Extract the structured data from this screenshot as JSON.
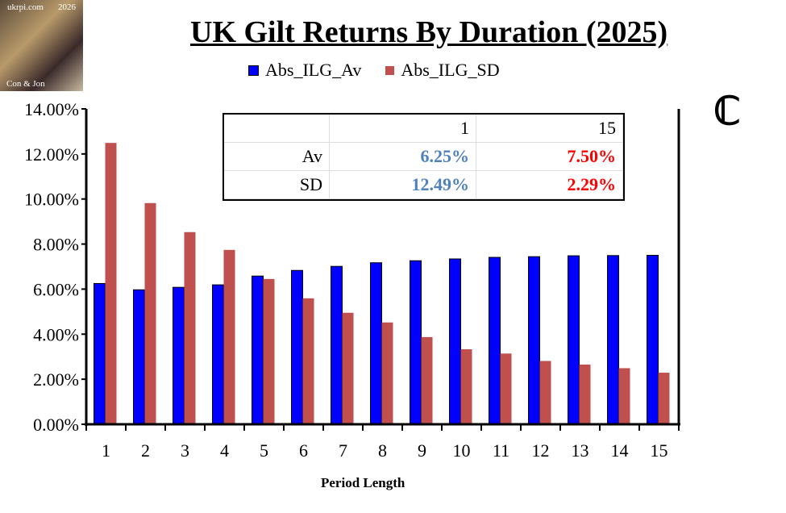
{
  "title": "UK Gilt Returns By Duration (2025)",
  "logo": {
    "top_left": "ukrpi.com",
    "top_right": "2026",
    "bottom": "Con & Jon"
  },
  "corner_mark": "ℂ",
  "summary_table": {
    "headers": [
      "",
      "1",
      "15"
    ],
    "rows": [
      {
        "label": "Av",
        "values": [
          "6.25%",
          "7.50%"
        ]
      },
      {
        "label": "SD",
        "values": [
          "12.49%",
          "2.29%"
        ]
      }
    ]
  },
  "chart_data": {
    "type": "bar",
    "title": "UK Gilt Returns By Duration (2025)",
    "xlabel": "Period Length",
    "ylabel": "",
    "ylim": [
      0,
      14
    ],
    "yticks": [
      "0.00%",
      "2.00%",
      "4.00%",
      "6.00%",
      "8.00%",
      "10.00%",
      "12.00%",
      "14.00%"
    ],
    "categories": [
      "1",
      "2",
      "3",
      "4",
      "5",
      "6",
      "7",
      "8",
      "9",
      "10",
      "11",
      "12",
      "13",
      "14",
      "15"
    ],
    "legend": "top",
    "grid": false,
    "series": [
      {
        "name": "Abs_ILG_Av",
        "color": "#0000ff",
        "values": [
          6.25,
          5.97,
          6.08,
          6.19,
          6.58,
          6.83,
          7.01,
          7.17,
          7.26,
          7.34,
          7.41,
          7.44,
          7.48,
          7.49,
          7.5
        ]
      },
      {
        "name": "Abs_ILG_SD",
        "color": "#c0504d",
        "values": [
          12.49,
          9.82,
          8.53,
          7.74,
          6.45,
          5.59,
          4.95,
          4.52,
          3.87,
          3.33,
          3.14,
          2.81,
          2.65,
          2.49,
          2.29
        ]
      }
    ]
  }
}
